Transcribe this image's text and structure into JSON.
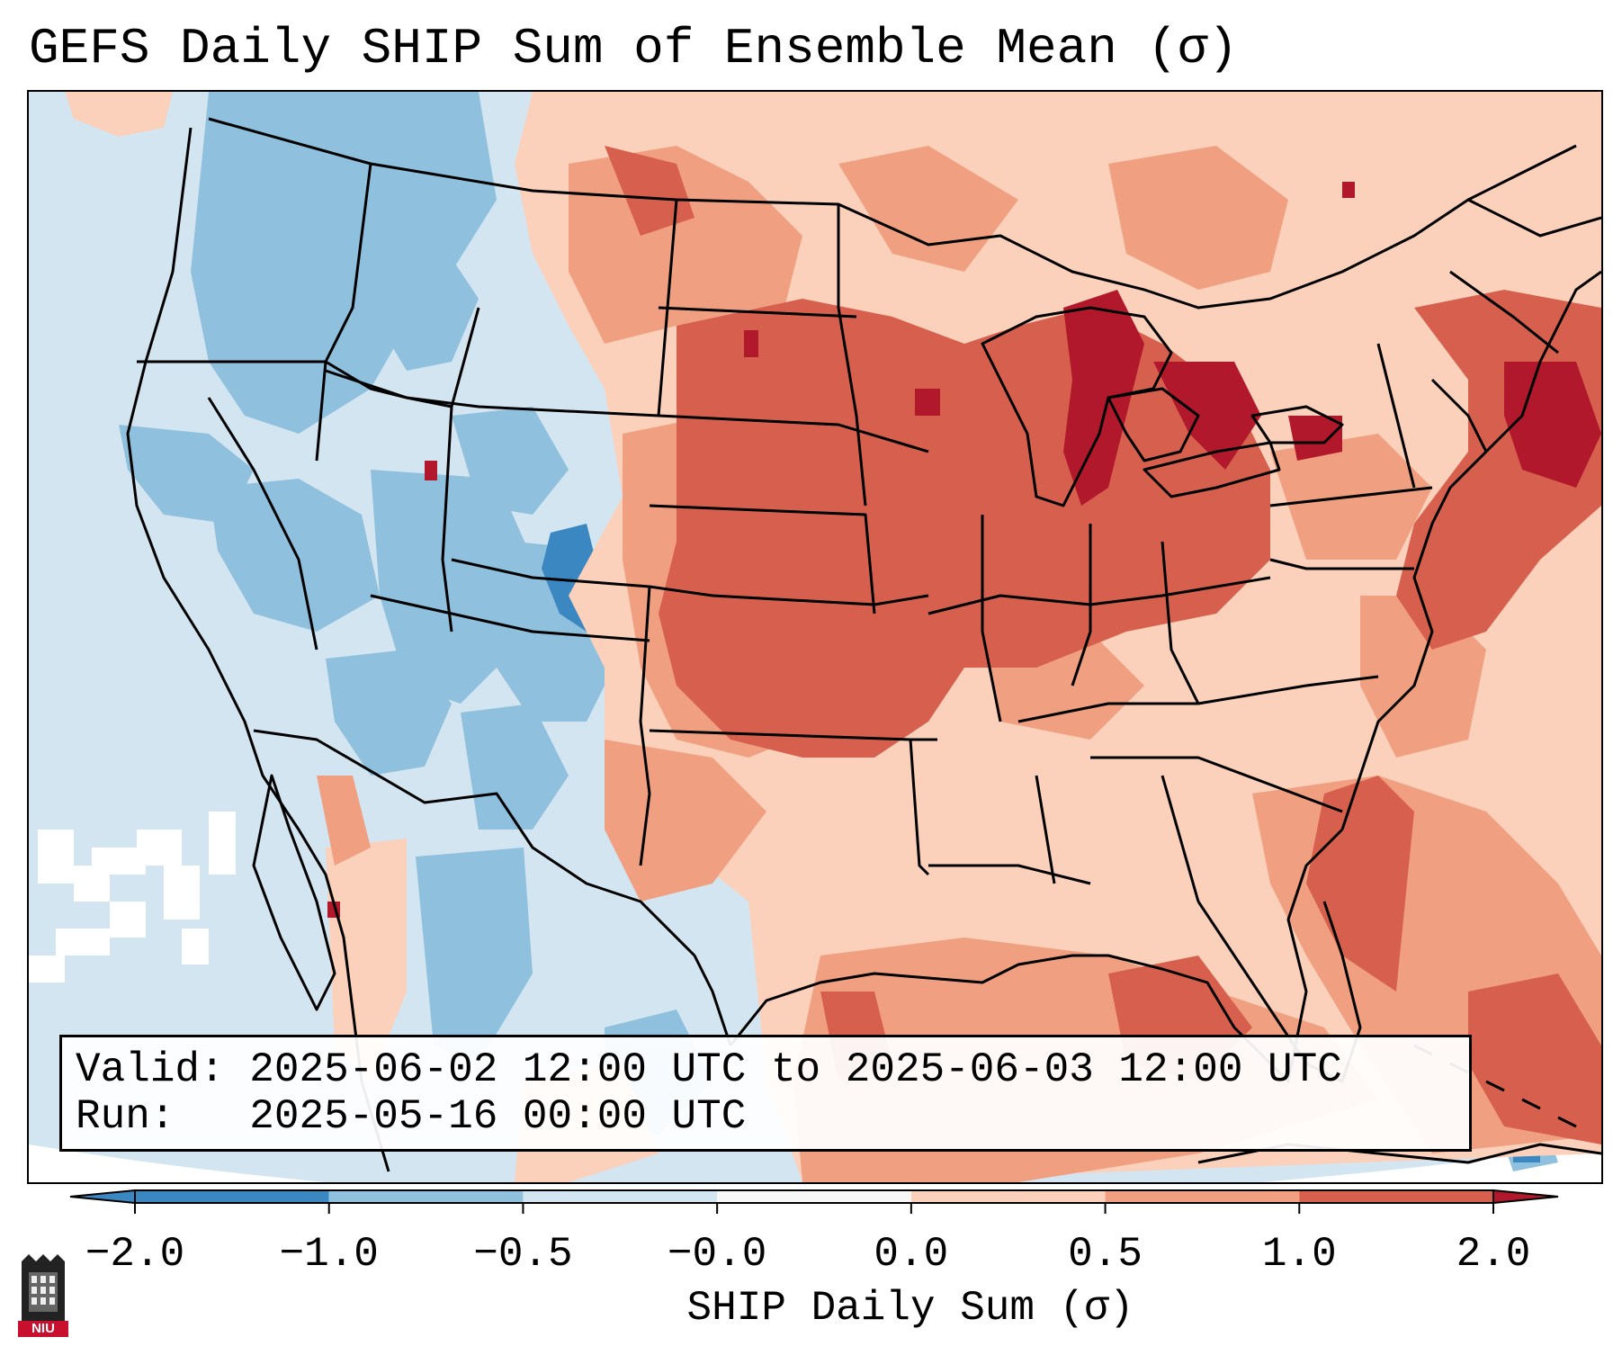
{
  "title": "GEFS Daily SHIP Sum of Ensemble Mean (σ)",
  "info": {
    "valid_label": "Valid:",
    "valid_value": "2025-06-02 12:00 UTC to 2025-06-03 12:00 UTC",
    "run_label": "Run:",
    "run_value": "2025-05-16 00:00 UTC"
  },
  "colorbar": {
    "label": "SHIP Daily Sum (σ)",
    "ticks": [
      "−2.0",
      "−1.0",
      "−0.5",
      "−0.0",
      "0.0",
      "0.5",
      "1.0",
      "2.0"
    ],
    "colors": [
      "#3a87c2",
      "#8fc0de",
      "#d3e5f0",
      "#f7f7f7",
      "#fbd1bc",
      "#f0a081",
      "#d6604d",
      "#b2182b"
    ]
  },
  "logo": {
    "text": "NIU"
  }
}
